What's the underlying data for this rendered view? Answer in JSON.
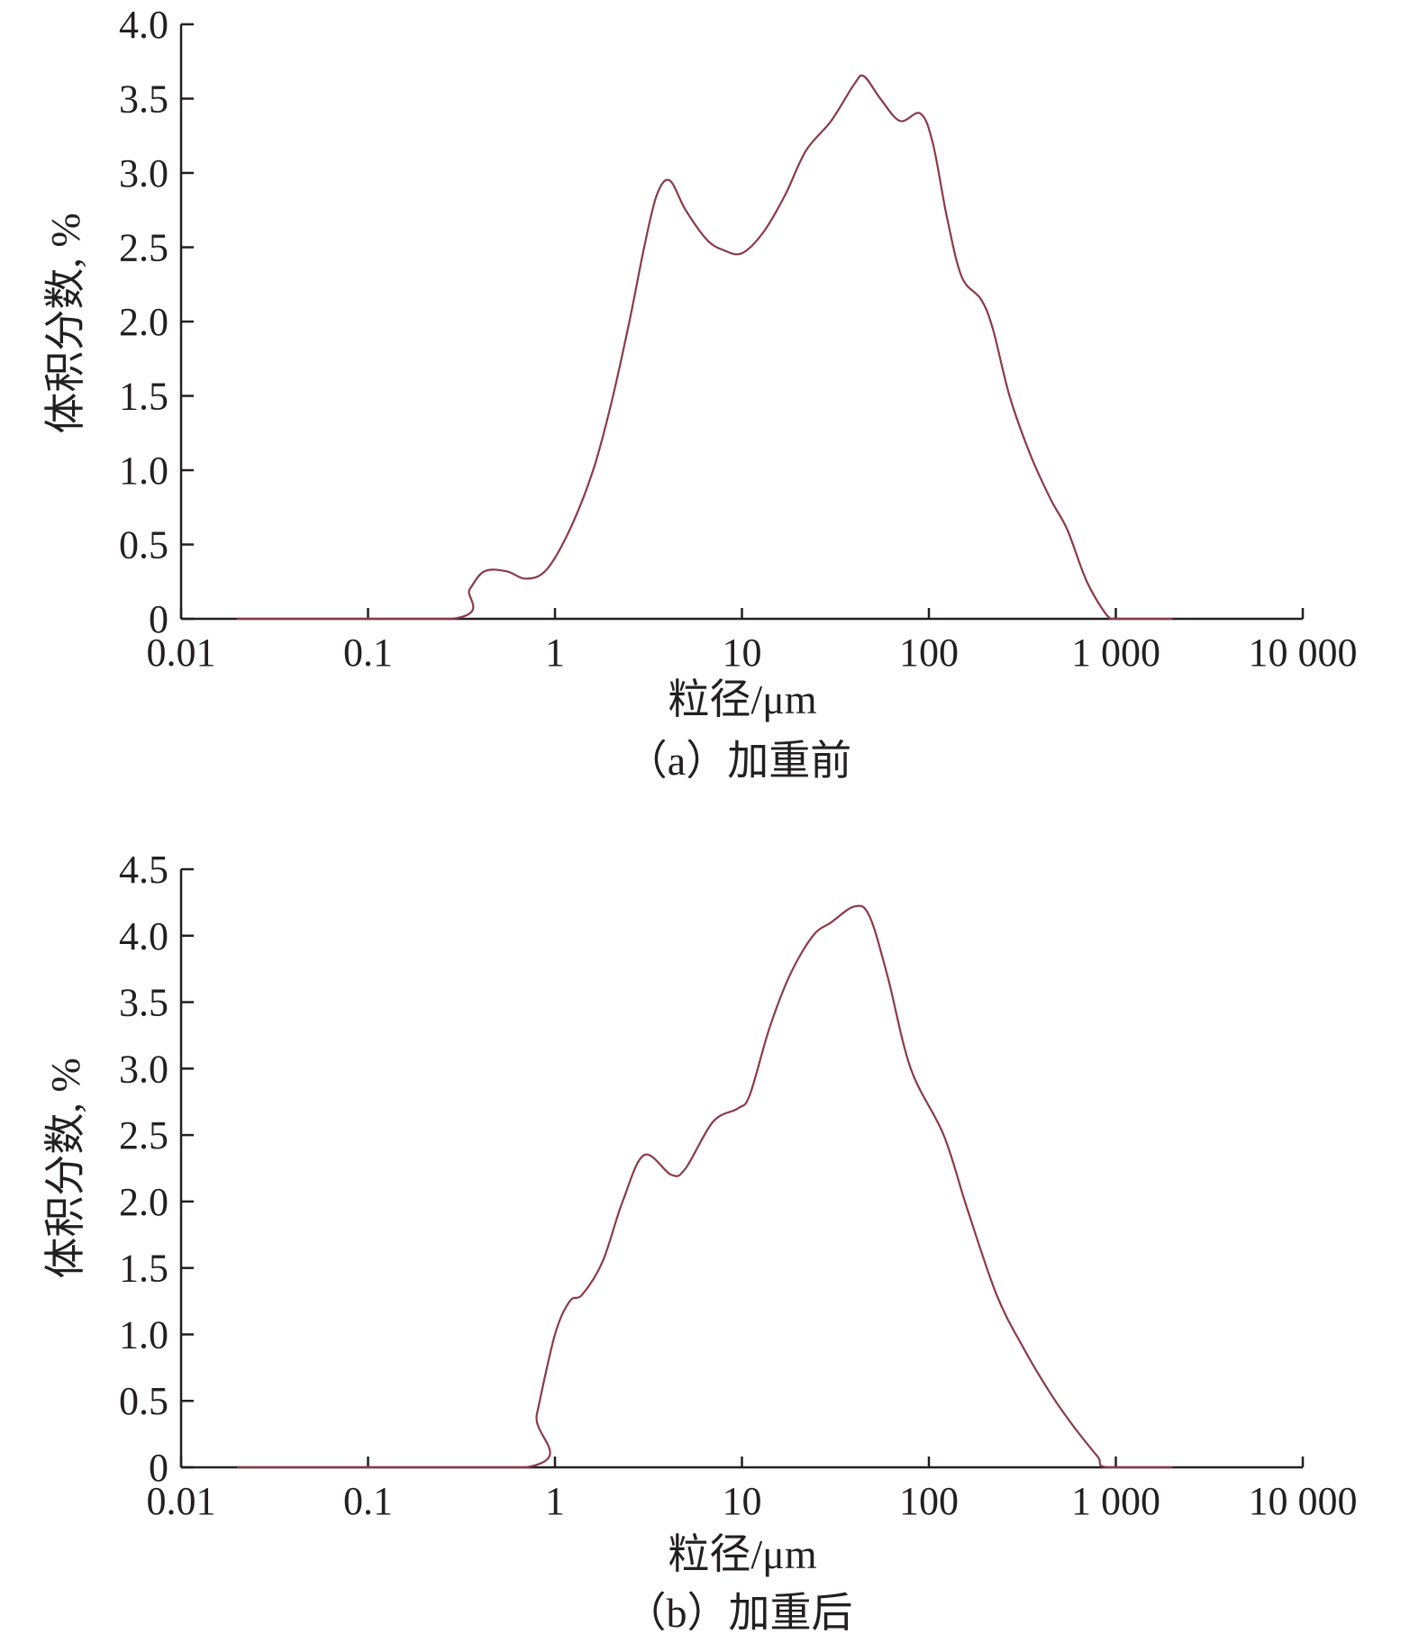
{
  "chart_data": [
    {
      "type": "line",
      "caption": "（a）加重前",
      "xlabel": "粒径/μm",
      "ylabel": "体积分数, %",
      "xscale": "log",
      "xlim": [
        0.01,
        10000
      ],
      "ylim": [
        0,
        4.0
      ],
      "xticks": [
        "0.01",
        "0.1",
        "1",
        "10",
        "100",
        "1 000",
        "10 000"
      ],
      "yticks": [
        "0",
        "0.5",
        "1.0",
        "1.5",
        "2.0",
        "2.5",
        "3.0",
        "3.5",
        "4.0"
      ],
      "grid": false,
      "line_color": "#8b3a4a",
      "x": [
        0.02,
        0.28,
        0.35,
        0.42,
        0.55,
        0.7,
        0.9,
        1.2,
        1.6,
        2.0,
        2.5,
        3.0,
        3.5,
        4.1,
        5,
        6.5,
        8,
        10,
        13,
        17,
        22,
        30,
        40,
        45,
        55,
        70,
        90,
        105,
        125,
        150,
        190,
        220,
        270,
        350,
        450,
        550,
        700,
        900,
        1000,
        2000
      ],
      "y": [
        0,
        0,
        0.2,
        0.32,
        0.32,
        0.27,
        0.33,
        0.6,
        1.0,
        1.45,
        2.0,
        2.5,
        2.85,
        2.95,
        2.75,
        2.55,
        2.48,
        2.46,
        2.6,
        2.85,
        3.15,
        3.35,
        3.6,
        3.65,
        3.5,
        3.35,
        3.4,
        3.2,
        2.7,
        2.3,
        2.15,
        1.95,
        1.5,
        1.1,
        0.8,
        0.6,
        0.25,
        0.02,
        0,
        0
      ]
    },
    {
      "type": "line",
      "caption": "（b）加重后",
      "xlabel": "粒径/μm",
      "ylabel": "体积分数, %",
      "xscale": "log",
      "xlim": [
        0.01,
        10000
      ],
      "ylim": [
        0,
        4.5
      ],
      "xticks": [
        "0.01",
        "0.1",
        "1",
        "10",
        "100",
        "1 000",
        "10 000"
      ],
      "yticks": [
        "0",
        "0.5",
        "1.0",
        "1.5",
        "2.0",
        "2.5",
        "3.0",
        "3.5",
        "4.0",
        "4.5"
      ],
      "grid": false,
      "line_color": "#8b3a4a",
      "x": [
        0.02,
        0.7,
        0.8,
        1.0,
        1.2,
        1.4,
        1.8,
        2.3,
        3.0,
        4.2,
        5,
        7,
        9.5,
        11,
        14,
        18,
        24,
        30,
        40,
        48,
        60,
        80,
        120,
        160,
        230,
        320,
        450,
        600,
        800,
        900,
        2000
      ],
      "y": [
        0,
        0,
        0.4,
        1.0,
        1.25,
        1.3,
        1.55,
        2.0,
        2.35,
        2.2,
        2.25,
        2.6,
        2.7,
        2.8,
        3.3,
        3.7,
        4.0,
        4.1,
        4.22,
        4.15,
        3.7,
        3.0,
        2.5,
        1.95,
        1.3,
        0.9,
        0.55,
        0.3,
        0.08,
        0,
        0
      ]
    }
  ]
}
